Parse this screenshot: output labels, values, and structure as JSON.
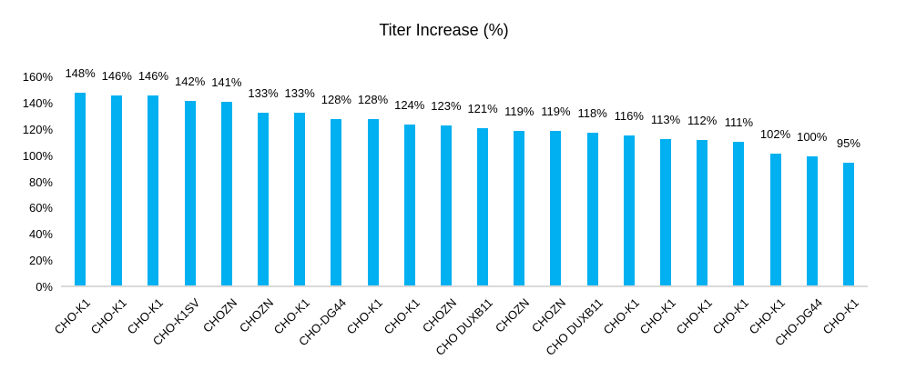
{
  "chart_data": {
    "type": "bar",
    "title": "Titer Increase (%)",
    "xlabel": "",
    "ylabel": "",
    "categories": [
      "CHO-K1",
      "CHO-K1",
      "CHO-K1",
      "CHO-K1SV",
      "CHOZN",
      "CHOZN",
      "CHO-K1",
      "CHO-DG44",
      "CHO-K1",
      "CHO-K1",
      "CHOZN",
      "CHO DUXB11",
      "CHOZN",
      "CHOZN",
      "CHO DUXB11",
      "CHO-K1",
      "CHO-K1",
      "CHO-K1",
      "CHO-K1",
      "CHO-K1",
      "CHO-DG44",
      "CHO-K1"
    ],
    "values": [
      148,
      146,
      146,
      142,
      141,
      133,
      133,
      128,
      128,
      124,
      123,
      121,
      119,
      119,
      118,
      116,
      113,
      112,
      111,
      102,
      100,
      95
    ],
    "data_labels": [
      "148%",
      "146%",
      "146%",
      "142%",
      "141%",
      "133%",
      "133%",
      "128%",
      "128%",
      "124%",
      "123%",
      "121%",
      "119%",
      "119%",
      "118%",
      "116%",
      "113%",
      "112%",
      "111%",
      "102%",
      "100%",
      "95%"
    ],
    "ylim": [
      0,
      160
    ],
    "ytick_step": 20,
    "ytick_labels": [
      "0%",
      "20%",
      "40%",
      "60%",
      "80%",
      "100%",
      "120%",
      "140%",
      "160%"
    ],
    "grid": false,
    "legend": null,
    "bar_color": "#00B0F0",
    "axis_line_color": "#D9D9D9",
    "text_color": "#000000"
  }
}
